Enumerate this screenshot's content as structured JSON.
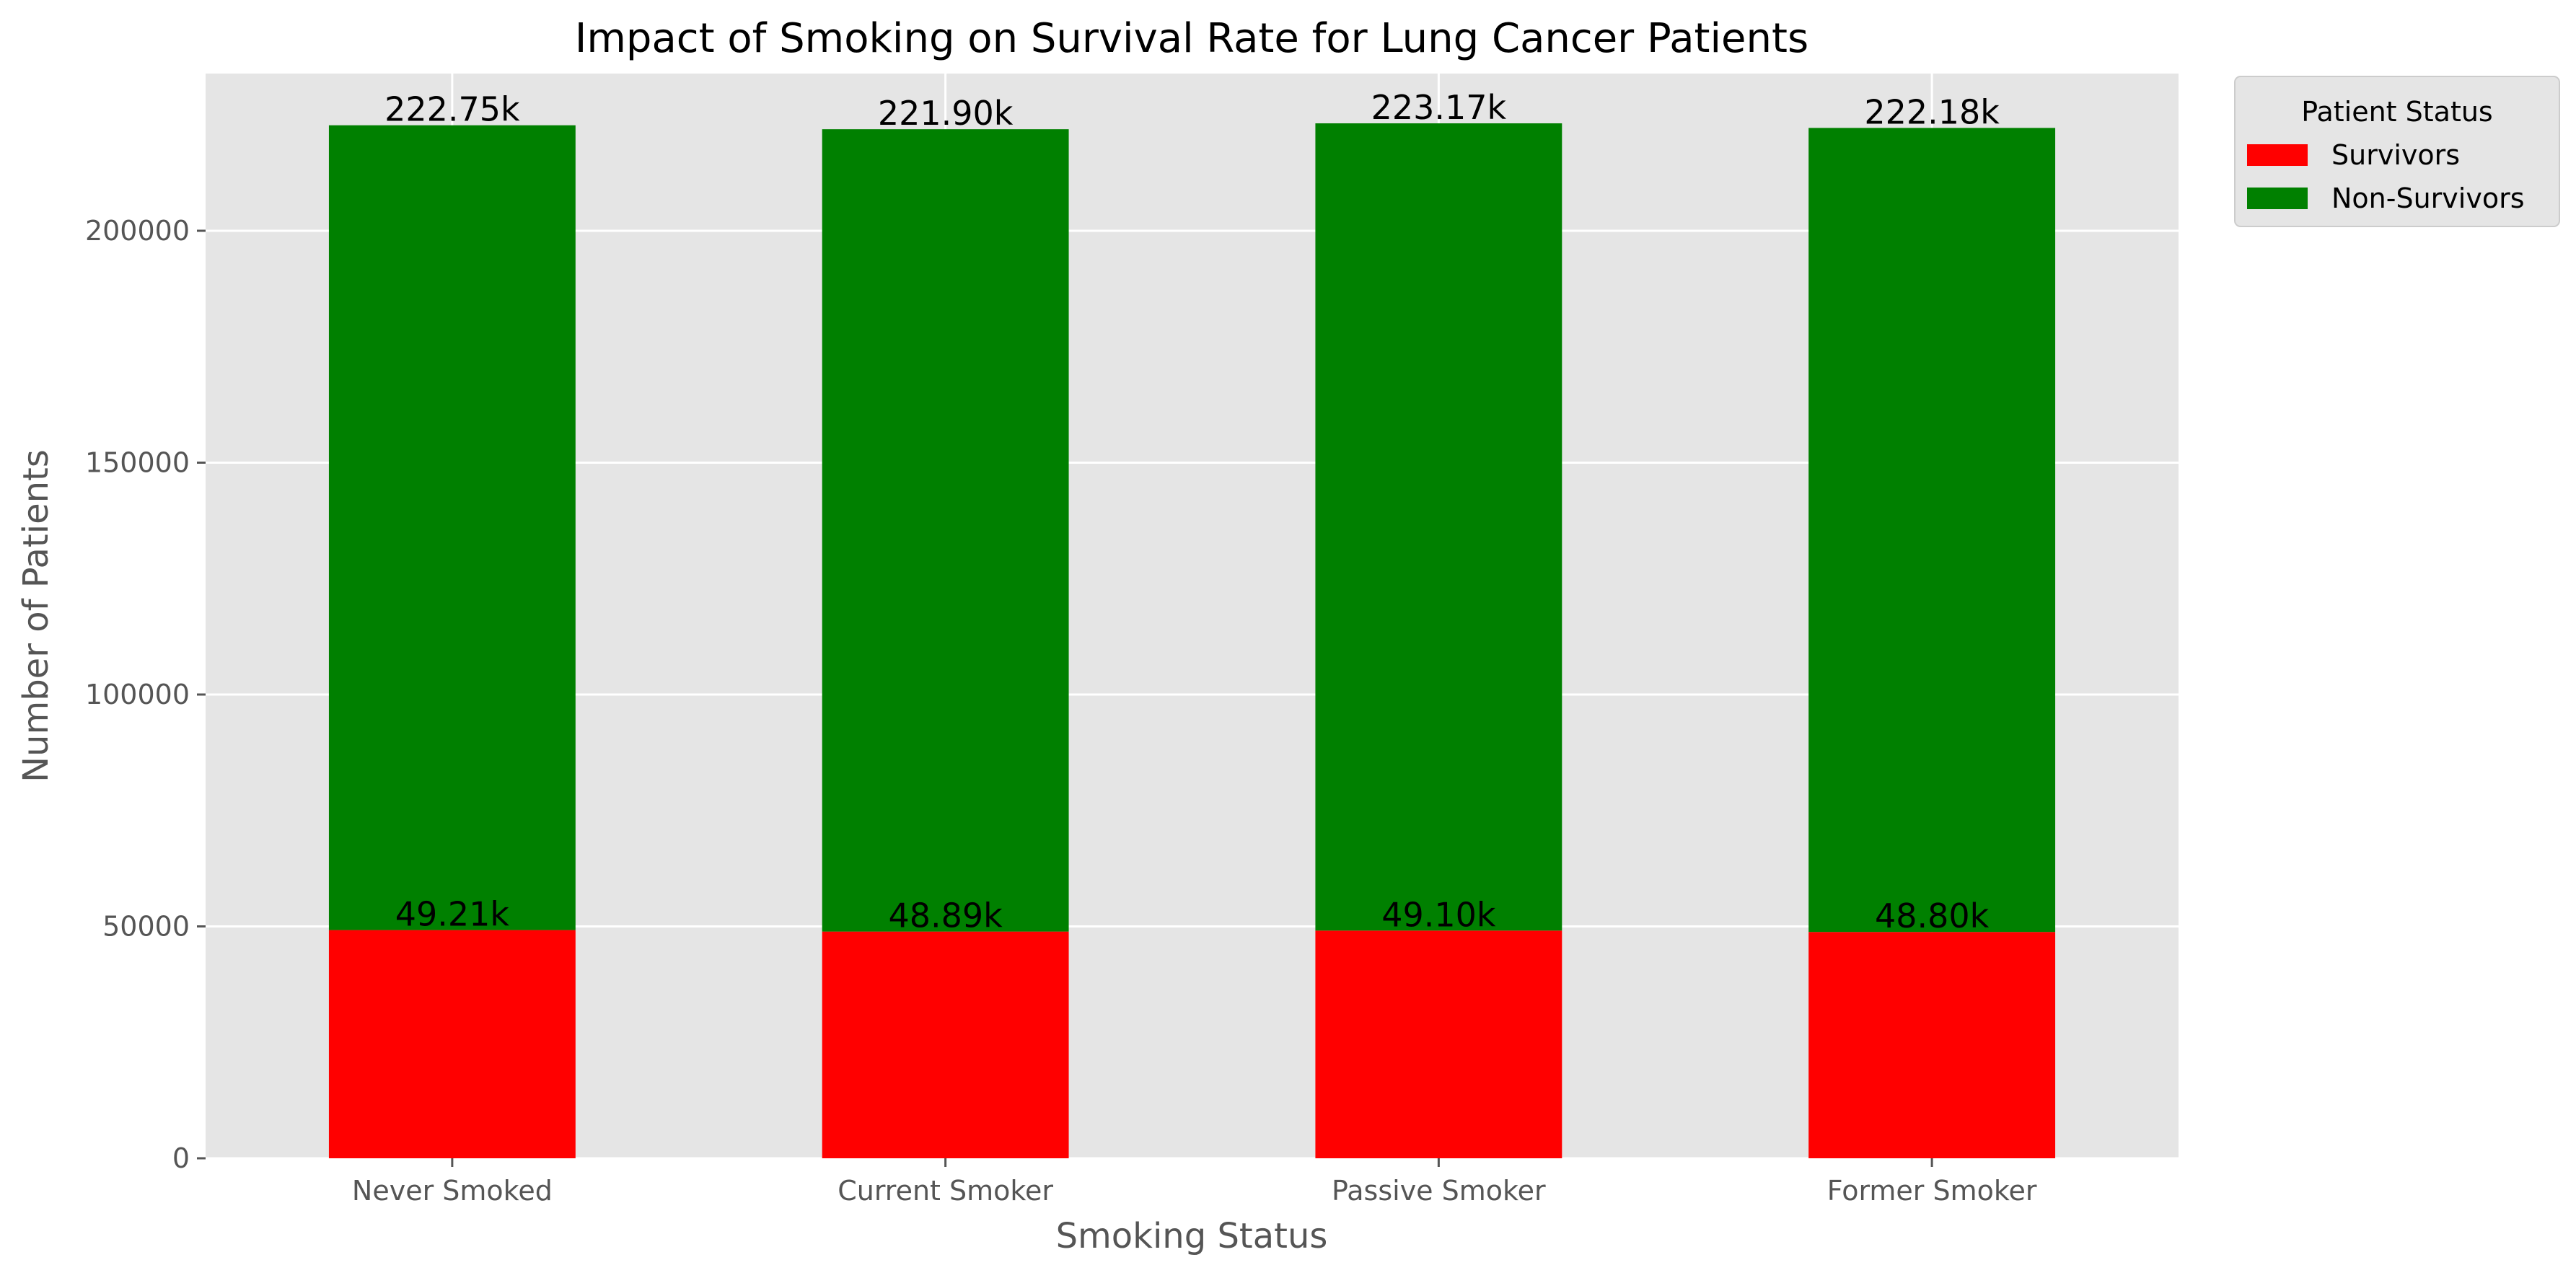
{
  "chart_data": {
    "type": "bar",
    "stacked": true,
    "title": "Impact of Smoking on Survival Rate for Lung Cancer Patients",
    "xlabel": "Smoking Status",
    "ylabel": "Number of Patients",
    "categories": [
      "Never Smoked",
      "Current Smoker",
      "Passive Smoker",
      "Former Smoker"
    ],
    "series": [
      {
        "name": "Survivors",
        "color": "#ff0000",
        "values": [
          49210,
          48890,
          49100,
          48800
        ],
        "labels": [
          "49.21k",
          "48.89k",
          "49.10k",
          "48.80k"
        ]
      },
      {
        "name": "Non-Survivors",
        "color": "#008000",
        "values": [
          173540,
          173010,
          174070,
          173380
        ],
        "labels": [
          "222.75k",
          "221.90k",
          "223.17k",
          "222.18k"
        ]
      }
    ],
    "ylim": [
      0,
      233900
    ],
    "yticks": [
      0,
      50000,
      100000,
      150000,
      200000
    ],
    "ytick_labels": [
      "0",
      "50000",
      "100000",
      "150000",
      "200000"
    ],
    "grid": true,
    "legend": {
      "title": "Patient Status",
      "placement": "outside-top-right"
    },
    "background_color": "#e5e5e5",
    "grid_color": "#ffffff"
  }
}
